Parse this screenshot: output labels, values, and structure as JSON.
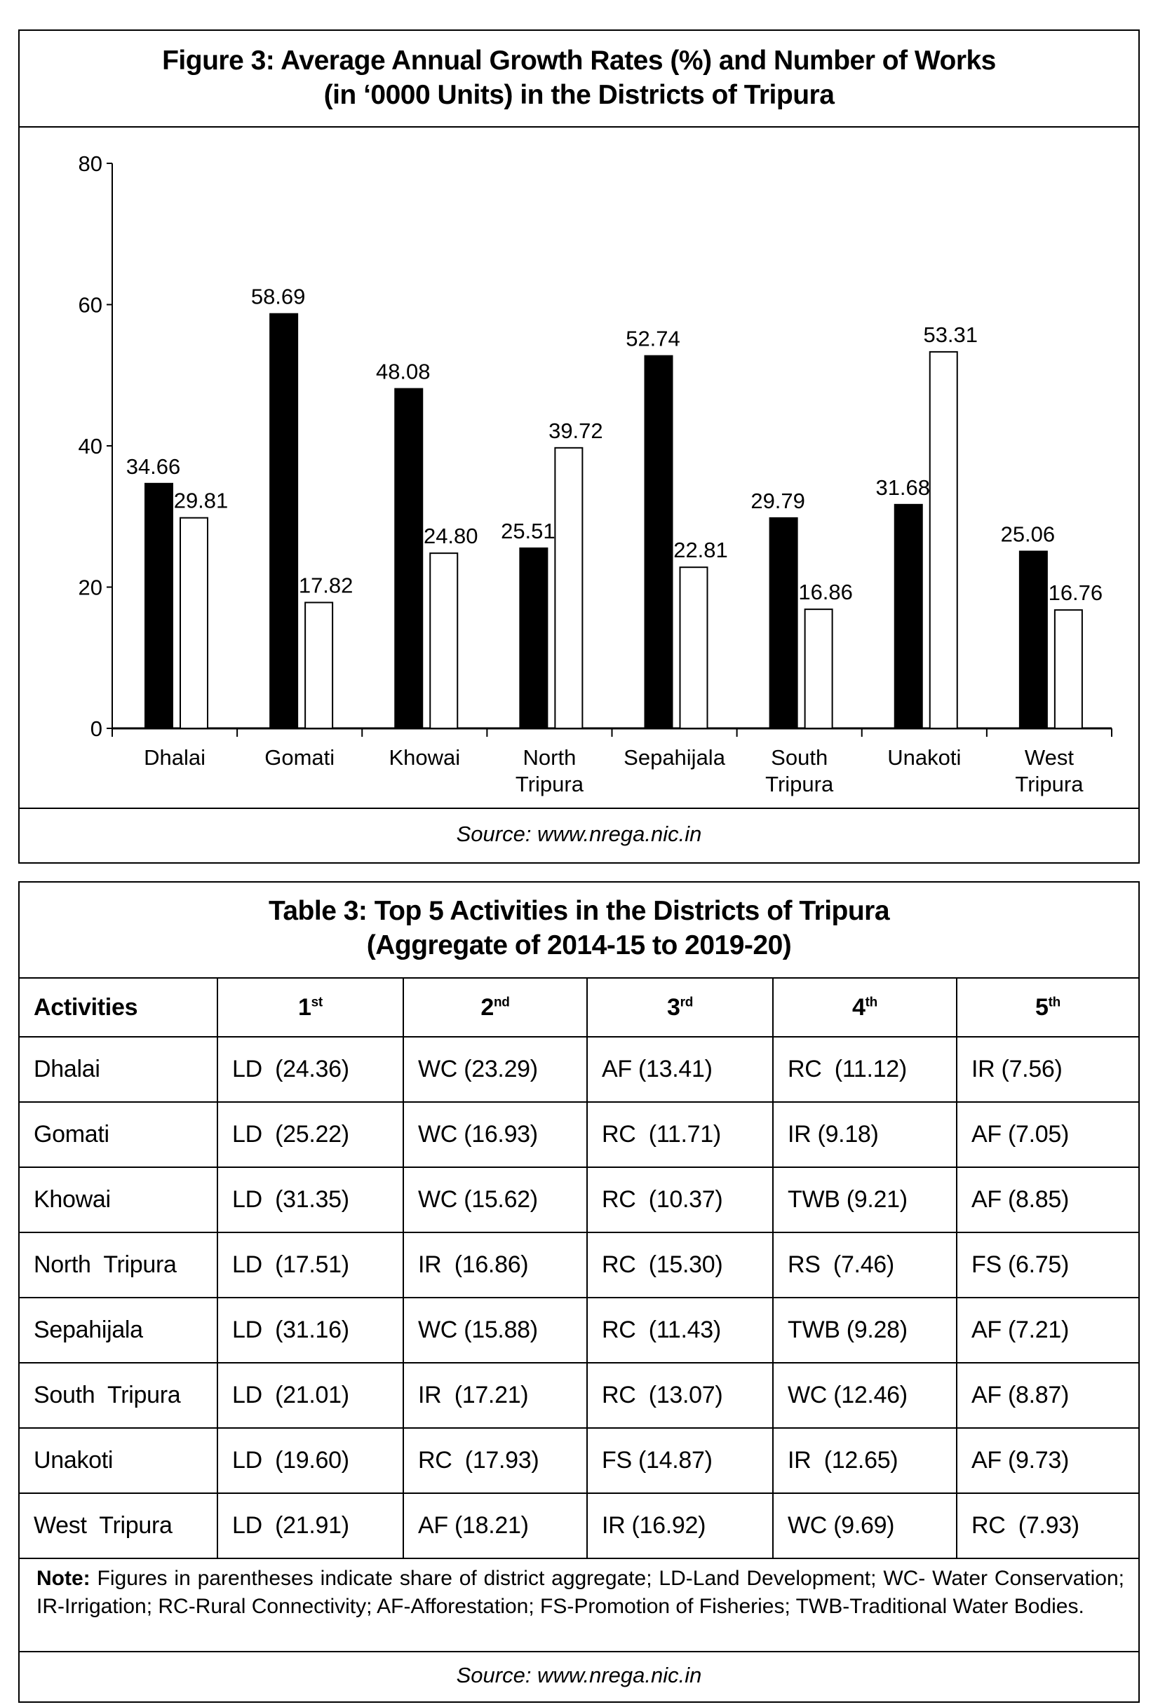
{
  "figure": {
    "title_line1": "Figure 3: Average Annual Growth Rates (%) and Number of Works",
    "title_line2": "(in ‘0000 Units) in the Districts of Tripura",
    "source": "Source:  www.nrega.nic.in"
  },
  "chart_data": {
    "type": "bar",
    "title": "Figure 3: Average Annual Growth Rates (%) and Number of Works (in ‘0000 Units) in the Districts of Tripura",
    "categories": [
      [
        "Dhalai"
      ],
      [
        "Gomati"
      ],
      [
        "Khowai"
      ],
      [
        "North",
        "Tripura"
      ],
      [
        "Sepahijala"
      ],
      [
        "South",
        "Tripura"
      ],
      [
        "Unakoti"
      ],
      [
        "West",
        "Tripura"
      ]
    ],
    "series": [
      {
        "name": "Average Annual Growth Rate (%)",
        "color": "#000000",
        "values": [
          34.66,
          58.69,
          48.08,
          25.51,
          52.74,
          29.79,
          31.68,
          25.06
        ]
      },
      {
        "name": "Number of Works ('0000 Units)",
        "color": "#ffffff",
        "values": [
          29.81,
          17.82,
          24.8,
          39.72,
          22.81,
          16.86,
          53.31,
          16.76
        ]
      }
    ],
    "value_labels": [
      [
        "34.66",
        "58.69",
        "48.08",
        "25.51",
        "52.74",
        "29.79",
        "31.68",
        "25.06"
      ],
      [
        "29.81",
        "17.82",
        "24.80",
        "39.72",
        "22.81",
        "16.86",
        "53.31",
        "16.76"
      ]
    ],
    "ylim": [
      0,
      80
    ],
    "yticks": [
      "0",
      "20",
      "40",
      "60",
      "80"
    ],
    "xlabel": "",
    "ylabel": "",
    "grid": false
  },
  "table": {
    "title_line1": "Table 3: Top 5 Activities in the Districts of Tripura",
    "title_line2": "(Aggregate of 2014-15 to 2019-20)",
    "headers": [
      {
        "num": "Activities",
        "sup": ""
      },
      {
        "num": "1",
        "sup": "st"
      },
      {
        "num": "2",
        "sup": "nd"
      },
      {
        "num": "3",
        "sup": "rd"
      },
      {
        "num": "4",
        "sup": "th"
      },
      {
        "num": "5",
        "sup": "th"
      }
    ],
    "rows": [
      [
        "Dhalai",
        "LD  (24.36)",
        "WC (23.29)",
        "AF (13.41)",
        "RC  (11.12)",
        "IR (7.56)"
      ],
      [
        "Gomati",
        "LD  (25.22)",
        "WC (16.93)",
        "RC  (11.71)",
        "IR (9.18)",
        "AF (7.05)"
      ],
      [
        "Khowai",
        "LD  (31.35)",
        "WC (15.62)",
        "RC  (10.37)",
        "TWB (9.21)",
        "AF (8.85)"
      ],
      [
        "North  Tripura",
        "LD  (17.51)",
        "IR  (16.86)",
        "RC  (15.30)",
        "RS  (7.46)",
        "FS (6.75)"
      ],
      [
        "Sepahijala",
        "LD  (31.16)",
        "WC (15.88)",
        "RC  (11.43)",
        "TWB (9.28)",
        "AF (7.21)"
      ],
      [
        "South  Tripura",
        "LD  (21.01)",
        "IR  (17.21)",
        "RC  (13.07)",
        "WC (12.46)",
        "AF (8.87)"
      ],
      [
        "Unakoti",
        "LD  (19.60)",
        "RC  (17.93)",
        "FS (14.87)",
        "IR  (12.65)",
        "AF (9.73)"
      ],
      [
        "West  Tripura",
        "LD  (21.91)",
        "AF (18.21)",
        "IR (16.92)",
        "WC (9.69)",
        "RC  (7.93)"
      ]
    ],
    "note_label": "Note:",
    "note_text": "Figures in parentheses indicate share of district aggregate; LD-Land Development; WC- Water Conservation; IR-Irrigation; RC-Rural Connectivity; AF-Afforestation; FS-Promotion of Fisheries; TWB-Traditional Water Bodies.",
    "source": "Source:  www.nrega.nic.in"
  }
}
